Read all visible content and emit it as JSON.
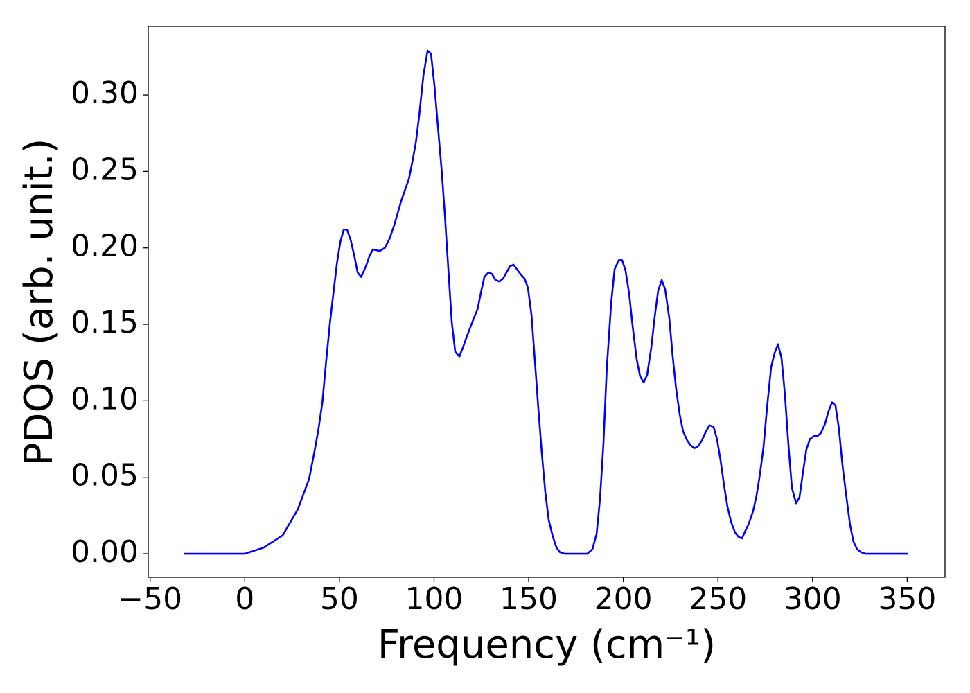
{
  "chart_data": {
    "type": "line",
    "xlabel": "Frequency (cm⁻¹)",
    "ylabel": "PDOS (arb. unit.)",
    "xlim": [
      -51,
      370
    ],
    "ylim": [
      -0.0154,
      0.3449
    ],
    "xticks": [
      {
        "value": -50,
        "label": "−50"
      },
      0,
      50,
      100,
      150,
      200,
      250,
      300,
      350
    ],
    "yticks": [
      {
        "value": 0,
        "label": "0.00"
      },
      {
        "value": 0.05,
        "label": "0.05"
      },
      {
        "value": 0.1,
        "label": "0.10"
      },
      {
        "value": 0.15,
        "label": "0.15"
      },
      {
        "value": 0.2,
        "label": "0.20"
      },
      {
        "value": 0.25,
        "label": "0.25"
      },
      {
        "value": 0.3,
        "label": "0.30"
      }
    ],
    "grid": false,
    "series": [
      {
        "name": "PDOS",
        "color": "#0000ff",
        "x": [
          -32,
          0,
          10,
          20,
          28,
          34,
          37,
          39,
          41,
          43,
          45,
          46.5,
          48.7,
          50.5,
          52.3,
          54,
          56,
          58,
          59.6,
          61.5,
          64,
          66,
          67.7,
          71.3,
          74,
          76.5,
          79,
          82.7,
          86.7,
          88.5,
          90.4,
          92.2,
          94.4,
          96.6,
          98.4,
          100.3,
          102,
          104,
          105.7,
          107.6,
          109.4,
          111.2,
          113.4,
          115.3,
          117,
          120.7,
          123,
          124.8,
          126.6,
          128.8,
          130.6,
          132.5,
          134.6,
          136.5,
          138.3,
          140.1,
          142,
          143.8,
          145.6,
          147.8,
          149.6,
          151.5,
          153.3,
          155.1,
          157,
          158.8,
          160.6,
          162.8,
          164.7,
          166.5,
          169,
          181,
          183.7,
          185.9,
          187.7,
          189.5,
          191.3,
          193.6,
          195.4,
          197.6,
          199.4,
          201.2,
          203.1,
          204.9,
          207.1,
          208.9,
          210.8,
          212.6,
          214.8,
          216.6,
          218.4,
          220.3,
          222.1,
          224.3,
          226.1,
          227.9,
          229.8,
          231.6,
          233.8,
          235.6,
          237.5,
          239.3,
          241.5,
          243.3,
          245.5,
          247.7,
          249.5,
          251.4,
          253.2,
          255,
          256.9,
          259,
          260.9,
          262.7,
          264.5,
          266.4,
          268.6,
          270.4,
          272.2,
          274.1,
          275.9,
          278.1,
          279.9,
          281.7,
          283.6,
          285.4,
          287.2,
          289.1,
          291.3,
          293.1,
          294.9,
          296.7,
          298.6,
          300.8,
          302.6,
          304.4,
          306.6,
          308.4,
          310.3,
          312.1,
          313.9,
          315.8,
          318,
          319.8,
          321.6,
          323.5,
          325.6,
          328,
          350.5
        ],
        "values": [
          0,
          0,
          0.004,
          0.012,
          0.029,
          0.049,
          0.068,
          0.082,
          0.099,
          0.126,
          0.151,
          0.167,
          0.19,
          0.204,
          0.212,
          0.212,
          0.205,
          0.194,
          0.184,
          0.181,
          0.188,
          0.195,
          0.199,
          0.198,
          0.2,
          0.206,
          0.215,
          0.231,
          0.245,
          0.256,
          0.269,
          0.287,
          0.313,
          0.329,
          0.327,
          0.305,
          0.28,
          0.251,
          0.222,
          0.185,
          0.151,
          0.132,
          0.129,
          0.135,
          0.141,
          0.153,
          0.16,
          0.171,
          0.181,
          0.184,
          0.183,
          0.179,
          0.178,
          0.18,
          0.184,
          0.188,
          0.189,
          0.186,
          0.183,
          0.18,
          0.174,
          0.156,
          0.126,
          0.095,
          0.065,
          0.04,
          0.022,
          0.011,
          0.004,
          0.001,
          0,
          0,
          0.003,
          0.013,
          0.036,
          0.072,
          0.122,
          0.164,
          0.186,
          0.192,
          0.192,
          0.185,
          0.17,
          0.149,
          0.127,
          0.116,
          0.112,
          0.117,
          0.135,
          0.155,
          0.172,
          0.179,
          0.173,
          0.154,
          0.129,
          0.108,
          0.091,
          0.08,
          0.074,
          0.071,
          0.069,
          0.07,
          0.074,
          0.079,
          0.084,
          0.083,
          0.075,
          0.061,
          0.045,
          0.031,
          0.021,
          0.014,
          0.011,
          0.01,
          0.015,
          0.02,
          0.028,
          0.038,
          0.052,
          0.07,
          0.095,
          0.122,
          0.131,
          0.137,
          0.128,
          0.104,
          0.072,
          0.043,
          0.033,
          0.037,
          0.053,
          0.068,
          0.075,
          0.077,
          0.077,
          0.079,
          0.085,
          0.093,
          0.099,
          0.097,
          0.082,
          0.058,
          0.036,
          0.019,
          0.008,
          0.003,
          0.001,
          0,
          0
        ]
      }
    ]
  }
}
